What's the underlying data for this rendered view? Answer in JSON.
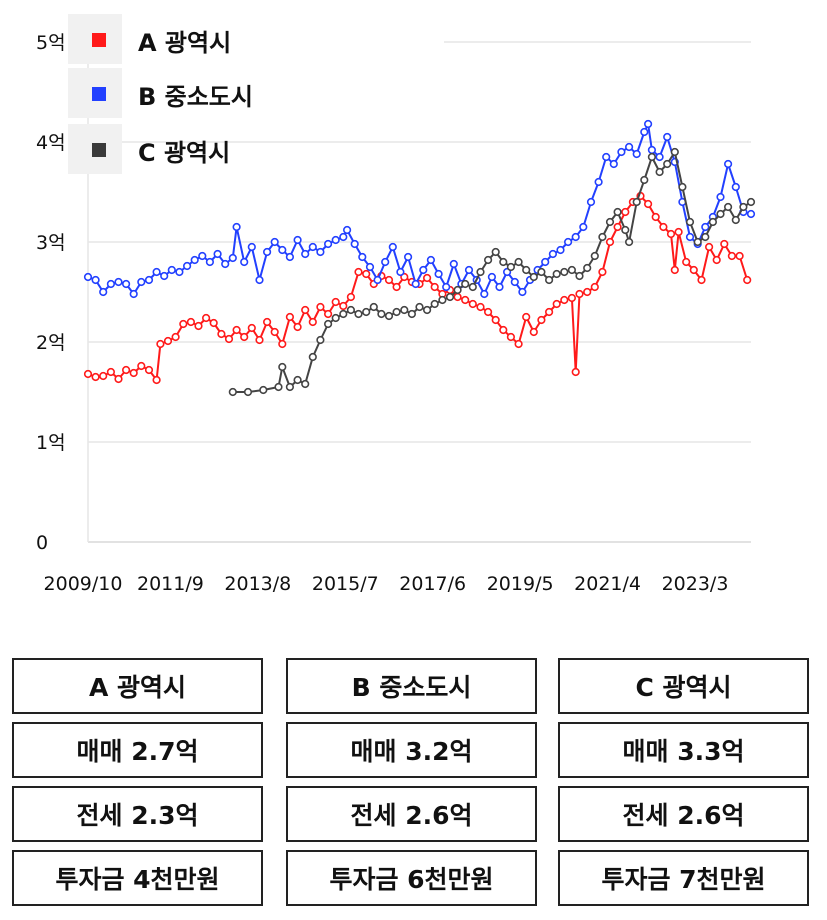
{
  "chart_data": {
    "type": "line",
    "y_tick_labels": [
      "0",
      "1억",
      "2억",
      "3억",
      "4억",
      "5억"
    ],
    "y_ticks": [
      0,
      1,
      2,
      3,
      4,
      5
    ],
    "ylim": [
      0,
      5
    ],
    "x_tick_labels": [
      "2009/10",
      "2011/9",
      "2013/8",
      "2015/7",
      "2017/6",
      "2019/5",
      "2021/4",
      "2023/3"
    ],
    "xlim": [
      "2009-10",
      "2024-04"
    ],
    "grid": "horizontal",
    "legend_position": "top-left",
    "series": [
      {
        "name": "A 광역시",
        "color": "#ff1a1a",
        "points": [
          [
            "2009-10",
            1.68
          ],
          [
            "2009-12",
            1.65
          ],
          [
            "2010-02",
            1.66
          ],
          [
            "2010-04",
            1.7
          ],
          [
            "2010-06",
            1.63
          ],
          [
            "2010-08",
            1.72
          ],
          [
            "2010-10",
            1.69
          ],
          [
            "2010-12",
            1.76
          ],
          [
            "2011-02",
            1.72
          ],
          [
            "2011-04",
            1.62
          ],
          [
            "2011-05",
            1.98
          ],
          [
            "2011-07",
            2.01
          ],
          [
            "2011-09",
            2.05
          ],
          [
            "2011-11",
            2.18
          ],
          [
            "2012-01",
            2.2
          ],
          [
            "2012-03",
            2.16
          ],
          [
            "2012-05",
            2.24
          ],
          [
            "2012-07",
            2.19
          ],
          [
            "2012-09",
            2.08
          ],
          [
            "2012-11",
            2.03
          ],
          [
            "2013-01",
            2.12
          ],
          [
            "2013-03",
            2.05
          ],
          [
            "2013-05",
            2.14
          ],
          [
            "2013-07",
            2.02
          ],
          [
            "2013-09",
            2.2
          ],
          [
            "2013-11",
            2.1
          ],
          [
            "2014-01",
            1.98
          ],
          [
            "2014-03",
            2.25
          ],
          [
            "2014-05",
            2.15
          ],
          [
            "2014-07",
            2.32
          ],
          [
            "2014-09",
            2.2
          ],
          [
            "2014-11",
            2.35
          ],
          [
            "2015-01",
            2.28
          ],
          [
            "2015-03",
            2.4
          ],
          [
            "2015-05",
            2.36
          ],
          [
            "2015-07",
            2.45
          ],
          [
            "2015-09",
            2.7
          ],
          [
            "2015-11",
            2.68
          ],
          [
            "2016-01",
            2.58
          ],
          [
            "2016-03",
            2.66
          ],
          [
            "2016-05",
            2.62
          ],
          [
            "2016-07",
            2.55
          ],
          [
            "2016-09",
            2.65
          ],
          [
            "2016-11",
            2.6
          ],
          [
            "2017-01",
            2.58
          ],
          [
            "2017-03",
            2.64
          ],
          [
            "2017-05",
            2.55
          ],
          [
            "2017-07",
            2.48
          ],
          [
            "2017-09",
            2.52
          ],
          [
            "2017-11",
            2.45
          ],
          [
            "2018-01",
            2.42
          ],
          [
            "2018-03",
            2.38
          ],
          [
            "2018-05",
            2.35
          ],
          [
            "2018-07",
            2.3
          ],
          [
            "2018-09",
            2.22
          ],
          [
            "2018-11",
            2.12
          ],
          [
            "2019-01",
            2.05
          ],
          [
            "2019-03",
            1.98
          ],
          [
            "2019-05",
            2.25
          ],
          [
            "2019-07",
            2.1
          ],
          [
            "2019-09",
            2.22
          ],
          [
            "2019-11",
            2.3
          ],
          [
            "2020-01",
            2.38
          ],
          [
            "2020-03",
            2.42
          ],
          [
            "2020-05",
            2.44
          ],
          [
            "2020-06",
            1.7
          ],
          [
            "2020-07",
            2.48
          ],
          [
            "2020-09",
            2.5
          ],
          [
            "2020-11",
            2.55
          ],
          [
            "2021-01",
            2.7
          ],
          [
            "2021-03",
            3.0
          ],
          [
            "2021-05",
            3.15
          ],
          [
            "2021-07",
            3.3
          ],
          [
            "2021-09",
            3.4
          ],
          [
            "2021-11",
            3.46
          ],
          [
            "2022-01",
            3.38
          ],
          [
            "2022-03",
            3.25
          ],
          [
            "2022-05",
            3.15
          ],
          [
            "2022-07",
            3.08
          ],
          [
            "2022-08",
            2.72
          ],
          [
            "2022-09",
            3.1
          ],
          [
            "2022-11",
            2.8
          ],
          [
            "2023-01",
            2.72
          ],
          [
            "2023-03",
            2.62
          ],
          [
            "2023-05",
            2.95
          ],
          [
            "2023-07",
            2.82
          ],
          [
            "2023-09",
            2.98
          ],
          [
            "2023-11",
            2.86
          ],
          [
            "2024-01",
            2.86
          ],
          [
            "2024-03",
            2.62
          ]
        ]
      },
      {
        "name": "B 중소도시",
        "color": "#2240ff",
        "points": [
          [
            "2009-10",
            2.65
          ],
          [
            "2009-12",
            2.62
          ],
          [
            "2010-02",
            2.5
          ],
          [
            "2010-04",
            2.58
          ],
          [
            "2010-06",
            2.6
          ],
          [
            "2010-08",
            2.58
          ],
          [
            "2010-10",
            2.48
          ],
          [
            "2010-12",
            2.6
          ],
          [
            "2011-02",
            2.62
          ],
          [
            "2011-04",
            2.7
          ],
          [
            "2011-06",
            2.66
          ],
          [
            "2011-08",
            2.72
          ],
          [
            "2011-10",
            2.7
          ],
          [
            "2011-12",
            2.76
          ],
          [
            "2012-02",
            2.82
          ],
          [
            "2012-04",
            2.86
          ],
          [
            "2012-06",
            2.8
          ],
          [
            "2012-08",
            2.88
          ],
          [
            "2012-10",
            2.78
          ],
          [
            "2012-12",
            2.84
          ],
          [
            "2013-01",
            3.15
          ],
          [
            "2013-03",
            2.8
          ],
          [
            "2013-05",
            2.95
          ],
          [
            "2013-07",
            2.62
          ],
          [
            "2013-09",
            2.9
          ],
          [
            "2013-11",
            3.0
          ],
          [
            "2014-01",
            2.92
          ],
          [
            "2014-03",
            2.85
          ],
          [
            "2014-05",
            3.02
          ],
          [
            "2014-07",
            2.88
          ],
          [
            "2014-09",
            2.95
          ],
          [
            "2014-11",
            2.9
          ],
          [
            "2015-01",
            2.98
          ],
          [
            "2015-03",
            3.02
          ],
          [
            "2015-05",
            3.05
          ],
          [
            "2015-06",
            3.12
          ],
          [
            "2015-08",
            2.98
          ],
          [
            "2015-10",
            2.85
          ],
          [
            "2015-12",
            2.75
          ],
          [
            "2016-02",
            2.62
          ],
          [
            "2016-04",
            2.8
          ],
          [
            "2016-06",
            2.95
          ],
          [
            "2016-08",
            2.7
          ],
          [
            "2016-10",
            2.85
          ],
          [
            "2016-12",
            2.58
          ],
          [
            "2017-02",
            2.72
          ],
          [
            "2017-04",
            2.82
          ],
          [
            "2017-06",
            2.68
          ],
          [
            "2017-08",
            2.55
          ],
          [
            "2017-10",
            2.78
          ],
          [
            "2017-12",
            2.58
          ],
          [
            "2018-02",
            2.72
          ],
          [
            "2018-04",
            2.62
          ],
          [
            "2018-06",
            2.48
          ],
          [
            "2018-08",
            2.65
          ],
          [
            "2018-10",
            2.55
          ],
          [
            "2018-12",
            2.7
          ],
          [
            "2019-02",
            2.6
          ],
          [
            "2019-04",
            2.5
          ],
          [
            "2019-06",
            2.62
          ],
          [
            "2019-08",
            2.72
          ],
          [
            "2019-10",
            2.8
          ],
          [
            "2019-12",
            2.88
          ],
          [
            "2020-02",
            2.92
          ],
          [
            "2020-04",
            3.0
          ],
          [
            "2020-06",
            3.05
          ],
          [
            "2020-08",
            3.15
          ],
          [
            "2020-10",
            3.4
          ],
          [
            "2020-12",
            3.6
          ],
          [
            "2021-02",
            3.85
          ],
          [
            "2021-04",
            3.78
          ],
          [
            "2021-06",
            3.9
          ],
          [
            "2021-08",
            3.95
          ],
          [
            "2021-10",
            3.88
          ],
          [
            "2021-12",
            4.1
          ],
          [
            "2022-01",
            4.18
          ],
          [
            "2022-02",
            3.92
          ],
          [
            "2022-04",
            3.85
          ],
          [
            "2022-06",
            4.05
          ],
          [
            "2022-08",
            3.8
          ],
          [
            "2022-10",
            3.4
          ],
          [
            "2022-12",
            3.05
          ],
          [
            "2023-02",
            2.98
          ],
          [
            "2023-04",
            3.15
          ],
          [
            "2023-06",
            3.25
          ],
          [
            "2023-08",
            3.45
          ],
          [
            "2023-10",
            3.78
          ],
          [
            "2023-12",
            3.55
          ],
          [
            "2024-02",
            3.3
          ],
          [
            "2024-04",
            3.28
          ]
        ]
      },
      {
        "name": "C 광역시",
        "color": "#444444",
        "points": [
          [
            "2012-12",
            1.5
          ],
          [
            "2013-04",
            1.5
          ],
          [
            "2013-08",
            1.52
          ],
          [
            "2013-12",
            1.55
          ],
          [
            "2014-01",
            1.75
          ],
          [
            "2014-03",
            1.55
          ],
          [
            "2014-05",
            1.62
          ],
          [
            "2014-07",
            1.58
          ],
          [
            "2014-09",
            1.85
          ],
          [
            "2014-11",
            2.02
          ],
          [
            "2015-01",
            2.18
          ],
          [
            "2015-03",
            2.24
          ],
          [
            "2015-05",
            2.28
          ],
          [
            "2015-07",
            2.32
          ],
          [
            "2015-09",
            2.28
          ],
          [
            "2015-11",
            2.3
          ],
          [
            "2016-01",
            2.35
          ],
          [
            "2016-03",
            2.28
          ],
          [
            "2016-05",
            2.26
          ],
          [
            "2016-07",
            2.3
          ],
          [
            "2016-09",
            2.32
          ],
          [
            "2016-11",
            2.28
          ],
          [
            "2017-01",
            2.35
          ],
          [
            "2017-03",
            2.32
          ],
          [
            "2017-05",
            2.38
          ],
          [
            "2017-07",
            2.42
          ],
          [
            "2017-09",
            2.45
          ],
          [
            "2017-11",
            2.52
          ],
          [
            "2018-01",
            2.58
          ],
          [
            "2018-03",
            2.55
          ],
          [
            "2018-05",
            2.7
          ],
          [
            "2018-07",
            2.82
          ],
          [
            "2018-09",
            2.9
          ],
          [
            "2018-11",
            2.8
          ],
          [
            "2019-01",
            2.75
          ],
          [
            "2019-03",
            2.8
          ],
          [
            "2019-05",
            2.72
          ],
          [
            "2019-07",
            2.65
          ],
          [
            "2019-09",
            2.7
          ],
          [
            "2019-11",
            2.62
          ],
          [
            "2020-01",
            2.68
          ],
          [
            "2020-03",
            2.7
          ],
          [
            "2020-05",
            2.72
          ],
          [
            "2020-07",
            2.66
          ],
          [
            "2020-09",
            2.74
          ],
          [
            "2020-11",
            2.86
          ],
          [
            "2021-01",
            3.05
          ],
          [
            "2021-03",
            3.2
          ],
          [
            "2021-05",
            3.3
          ],
          [
            "2021-07",
            3.12
          ],
          [
            "2021-08",
            3.0
          ],
          [
            "2021-10",
            3.4
          ],
          [
            "2021-12",
            3.62
          ],
          [
            "2022-02",
            3.85
          ],
          [
            "2022-04",
            3.7
          ],
          [
            "2022-06",
            3.78
          ],
          [
            "2022-08",
            3.9
          ],
          [
            "2022-10",
            3.55
          ],
          [
            "2022-12",
            3.2
          ],
          [
            "2023-02",
            3.0
          ],
          [
            "2023-04",
            3.05
          ],
          [
            "2023-06",
            3.2
          ],
          [
            "2023-08",
            3.28
          ],
          [
            "2023-10",
            3.35
          ],
          [
            "2023-12",
            3.22
          ],
          [
            "2024-02",
            3.35
          ],
          [
            "2024-04",
            3.4
          ]
        ]
      }
    ]
  },
  "table": {
    "rows": [
      [
        "A 광역시",
        "B 중소도시",
        "C 광역시"
      ],
      [
        "매매 2.7억",
        "매매 3.2억",
        "매매 3.3억"
      ],
      [
        "전세 2.3억",
        "전세 2.6억",
        "전세 2.6억"
      ],
      [
        "투자금 4천만원",
        "투자금 6천만원",
        "투자금 7천만원"
      ]
    ]
  }
}
